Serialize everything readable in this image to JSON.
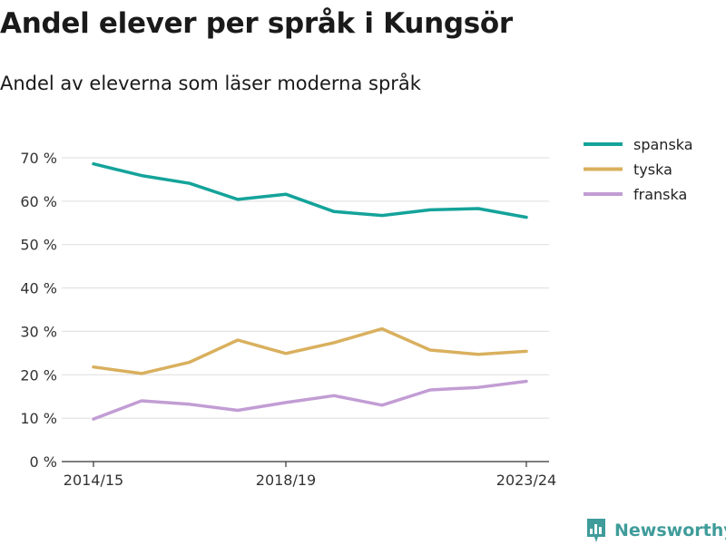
{
  "title": "Andel elever per språk i Kungsör",
  "subtitle": "Andel av eleverna som läser moderna språk",
  "brand": {
    "name": "Newsworthy",
    "logo_icon": "newsworthy-logo-icon",
    "color": "#3f9c9a"
  },
  "chart_data": {
    "type": "line",
    "title": "Andel elever per språk i Kungsör",
    "subtitle": "Andel av eleverna som läser moderna språk",
    "xlabel": "",
    "ylabel": "",
    "x": [
      "2014/15",
      "2015/16",
      "2016/17",
      "2017/18",
      "2018/19",
      "2019/20",
      "2020/21",
      "2021/22",
      "2022/23",
      "2023/24"
    ],
    "x_tick_labels": [
      "2014/15",
      "2018/19",
      "2023/24"
    ],
    "ylim": [
      0,
      70
    ],
    "y_ticks": [
      0,
      10,
      20,
      30,
      40,
      50,
      60,
      70
    ],
    "y_tick_labels": [
      "0 %",
      "10 %",
      "20 %",
      "30 %",
      "40 %",
      "50 %",
      "60 %",
      "70 %"
    ],
    "grid": true,
    "legend_position": "top-right",
    "series": [
      {
        "name": "spanska",
        "color": "#14a39a",
        "values": [
          68.6,
          65.9,
          64.1,
          60.4,
          61.6,
          57.6,
          56.7,
          58.0,
          58.3,
          56.3
        ]
      },
      {
        "name": "tyska",
        "color": "#d9b05e",
        "values": [
          21.8,
          20.3,
          22.9,
          28.0,
          24.9,
          27.4,
          30.6,
          25.7,
          24.7,
          25.4
        ]
      },
      {
        "name": "franska",
        "color": "#c29dd4",
        "values": [
          9.8,
          14.0,
          13.2,
          11.8,
          13.6,
          15.2,
          13.0,
          16.5,
          17.1,
          18.5
        ]
      }
    ]
  }
}
